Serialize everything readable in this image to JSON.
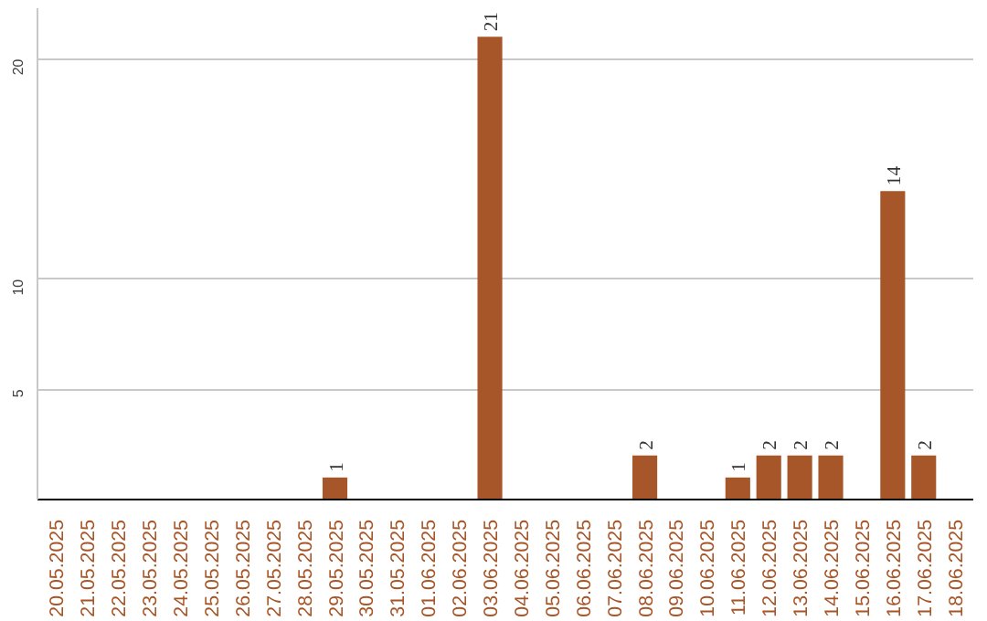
{
  "chart_data": {
    "type": "bar",
    "categories": [
      "20.05.2025",
      "21.05.2025",
      "22.05.2025",
      "23.05.2025",
      "24.05.2025",
      "25.05.2025",
      "26.05.2025",
      "27.05.2025",
      "28.05.2025",
      "29.05.2025",
      "30.05.2025",
      "31.05.2025",
      "01.06.2025",
      "02.06.2025",
      "03.06.2025",
      "04.06.2025",
      "05.06.2025",
      "06.06.2025",
      "07.06.2025",
      "08.06.2025",
      "09.06.2025",
      "10.06.2025",
      "11.06.2025",
      "12.06.2025",
      "13.06.2025",
      "14.06.2025",
      "15.06.2025",
      "16.06.2025",
      "17.06.2025",
      "18.06.2025"
    ],
    "values": [
      0,
      0,
      0,
      0,
      0,
      0,
      0,
      0,
      0,
      1,
      0,
      0,
      0,
      0,
      21,
      0,
      0,
      0,
      0,
      2,
      0,
      0,
      1,
      2,
      2,
      2,
      0,
      14,
      2,
      0
    ],
    "value_labels": [
      null,
      null,
      null,
      null,
      null,
      null,
      null,
      null,
      null,
      "1",
      null,
      null,
      null,
      null,
      "21",
      null,
      null,
      null,
      null,
      "2",
      null,
      null,
      "1",
      "2",
      "2",
      "2",
      null,
      "14",
      "2",
      null
    ],
    "color": "#a65628",
    "ylim": [
      0,
      22.3
    ],
    "yticks": [
      5,
      10,
      20
    ],
    "grid": "y"
  }
}
